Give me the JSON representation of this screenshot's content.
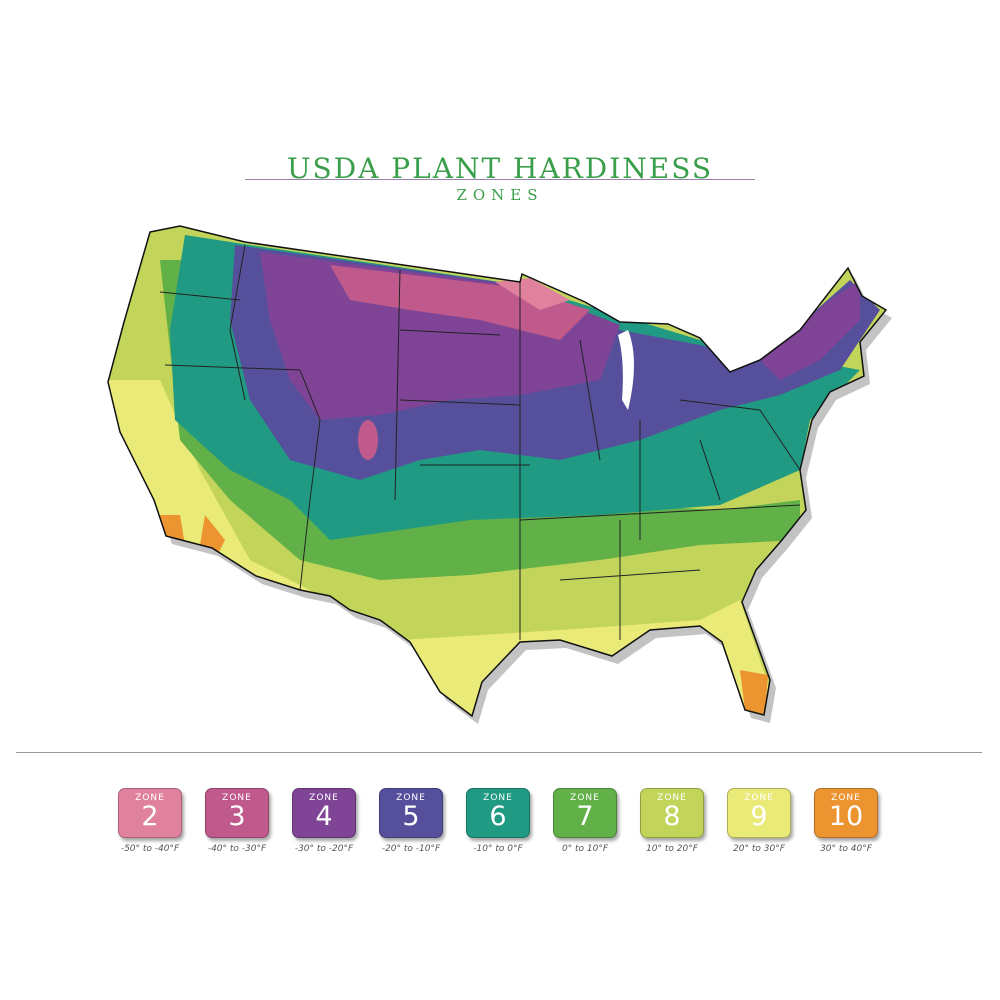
{
  "title": "USDA PLANT HARDINESS",
  "subtitle": "ZONES",
  "legend": [
    {
      "label": "ZONE",
      "zone": "2",
      "range": "-50° to -40°F",
      "color": "#e0829e"
    },
    {
      "label": "ZONE",
      "zone": "3",
      "range": "-40° to -30°F",
      "color": "#c05a8c"
    },
    {
      "label": "ZONE",
      "zone": "4",
      "range": "-30° to -20°F",
      "color": "#7f4496"
    },
    {
      "label": "ZONE",
      "zone": "5",
      "range": "-20° to -10°F",
      "color": "#56509c"
    },
    {
      "label": "ZONE",
      "zone": "6",
      "range": "-10° to 0°F",
      "color": "#209a82"
    },
    {
      "label": "ZONE",
      "zone": "7",
      "range": "0° to 10°F",
      "color": "#62b048"
    },
    {
      "label": "ZONE",
      "zone": "8",
      "range": "10° to 20°F",
      "color": "#c3d45a"
    },
    {
      "label": "ZONE",
      "zone": "9",
      "range": "20° to 30°F",
      "color": "#eaea78"
    },
    {
      "label": "ZONE",
      "zone": "10",
      "range": "30° to 40°F",
      "color": "#ec9430"
    }
  ]
}
